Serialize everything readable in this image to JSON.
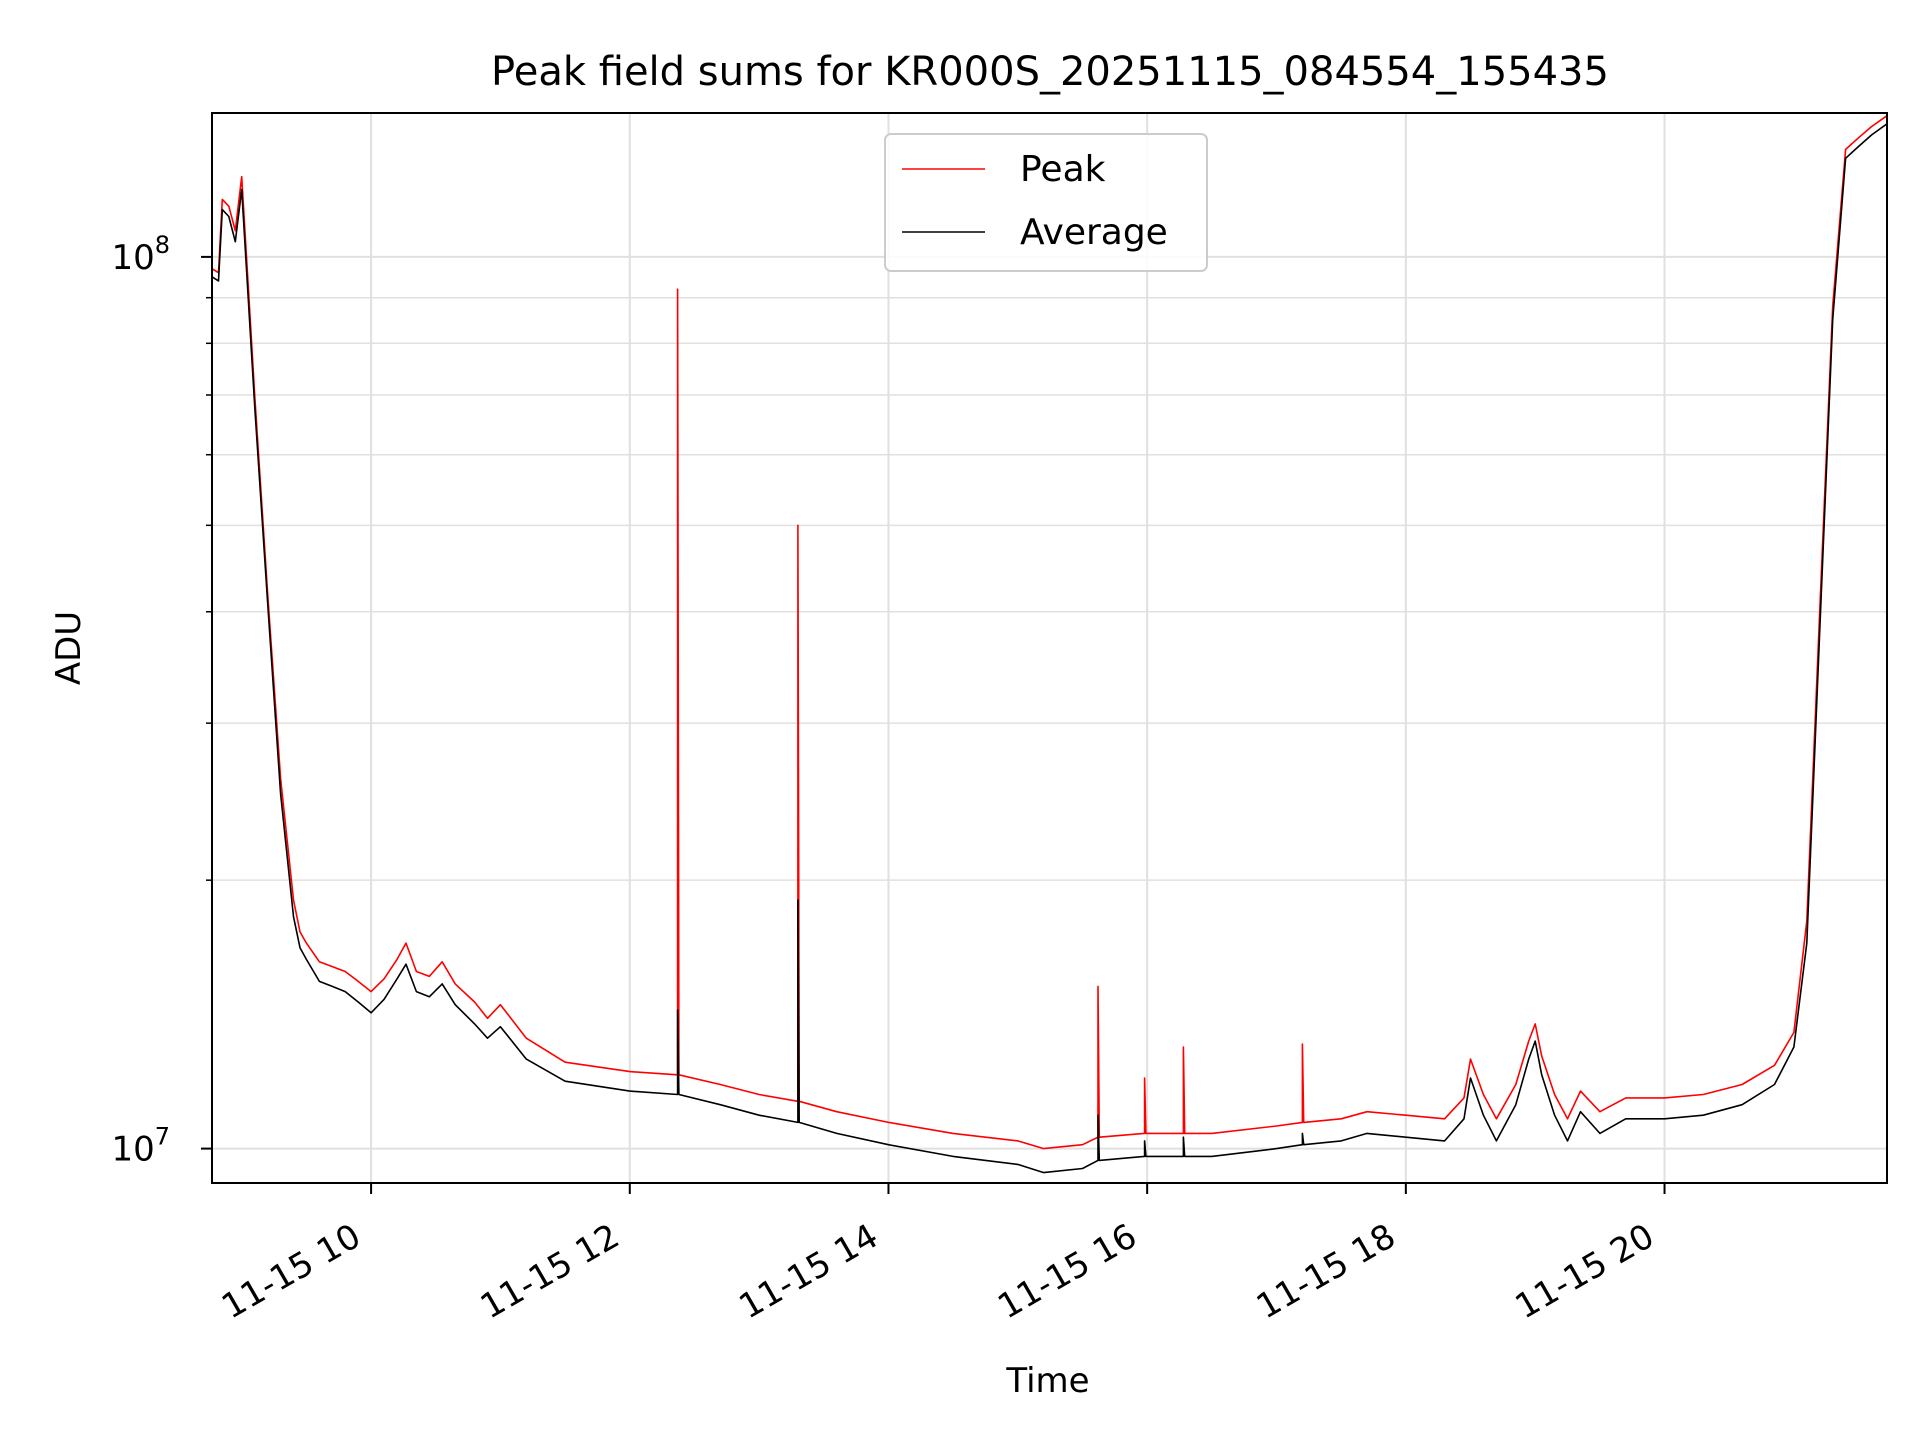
{
  "chart_data": {
    "type": "line",
    "title": "Peak field sums for KR000S_20251115_084554_155435",
    "xlabel": "Time",
    "ylabel": "ADU",
    "x_unit": "hours since 2025-11-15 00:00",
    "xlim": [
      8.77,
      21.72
    ],
    "ylim": [
      9150000.0,
      145000000.0
    ],
    "y_scale": "log",
    "grid": true,
    "legend_position": "upper center",
    "x_ticks": [
      {
        "value": 10,
        "label": "11-15 10"
      },
      {
        "value": 12,
        "label": "11-15 12"
      },
      {
        "value": 14,
        "label": "11-15 14"
      },
      {
        "value": 16,
        "label": "11-15 16"
      },
      {
        "value": 18,
        "label": "11-15 18"
      },
      {
        "value": 20,
        "label": "11-15 20"
      }
    ],
    "y_ticks": [
      {
        "value": 10000000,
        "base": "10",
        "exp": "7"
      },
      {
        "value": 100000000,
        "base": "10",
        "exp": "8"
      }
    ],
    "series": [
      {
        "name": "Peak",
        "color": "#ff0000",
        "x": [
          8.77,
          8.82,
          8.85,
          8.9,
          8.95,
          9.0,
          9.05,
          9.1,
          9.2,
          9.3,
          9.4,
          9.45,
          9.5,
          9.6,
          9.7,
          9.8,
          9.9,
          10.0,
          10.1,
          10.2,
          10.27,
          10.35,
          10.45,
          10.55,
          10.65,
          10.8,
          10.9,
          11.0,
          11.2,
          11.5,
          12.0,
          12.37,
          12.37,
          12.38,
          12.7,
          13.0,
          13.3,
          13.3,
          13.31,
          13.6,
          14.0,
          14.5,
          15.0,
          15.2,
          15.5,
          15.62,
          15.62,
          15.63,
          15.98,
          15.98,
          15.99,
          16.28,
          16.28,
          16.29,
          16.5,
          17.0,
          17.2,
          17.2,
          17.21,
          17.5,
          17.7,
          18.0,
          18.3,
          18.45,
          18.5,
          18.6,
          18.7,
          18.85,
          18.95,
          19.0,
          19.05,
          19.15,
          19.25,
          19.35,
          19.5,
          19.7,
          20.0,
          20.3,
          20.6,
          20.85,
          21.0,
          21.1,
          21.2,
          21.3,
          21.4,
          21.5,
          21.6,
          21.72
        ],
        "y": [
          97000000.0,
          96000000.0,
          116000000.0,
          114000000.0,
          107000000.0,
          123000000.0,
          93000000.0,
          70000000.0,
          42000000.0,
          26000000.0,
          19000000.0,
          17500000.0,
          17000000.0,
          16200000.0,
          16000000.0,
          15800000.0,
          15400000.0,
          15000000.0,
          15500000.0,
          16300000.0,
          17000000.0,
          15800000.0,
          15600000.0,
          16200000.0,
          15300000.0,
          14600000.0,
          14000000.0,
          14500000.0,
          13300000.0,
          12500000.0,
          12200000.0,
          12100000.0,
          92000000.0,
          12100000.0,
          11800000.0,
          11500000.0,
          11300000.0,
          50000000.0,
          11300000.0,
          11000000.0,
          10700000.0,
          10400000.0,
          10200000.0,
          10000000.0,
          10100000.0,
          10300000.0,
          15200000.0,
          10300000.0,
          10400000.0,
          12000000.0,
          10400000.0,
          10400000.0,
          13000000.0,
          10400000.0,
          10400000.0,
          10600000.0,
          10700000.0,
          13100000.0,
          10700000.0,
          10800000.0,
          11000000.0,
          10900000.0,
          10800000.0,
          11400000.0,
          12600000.0,
          11500000.0,
          10800000.0,
          11800000.0,
          13200000.0,
          13800000.0,
          12700000.0,
          11500000.0,
          10800000.0,
          11600000.0,
          11000000.0,
          11400000.0,
          11400000.0,
          11500000.0,
          11800000.0,
          12400000.0,
          13500000.0,
          18000000.0,
          40000000.0,
          88000000.0,
          132000000.0,
          136000000.0,
          140000000.0,
          144000000.0
        ]
      },
      {
        "name": "Average",
        "color": "#000000",
        "x": [
          8.77,
          8.82,
          8.85,
          8.9,
          8.95,
          9.0,
          9.05,
          9.1,
          9.2,
          9.3,
          9.4,
          9.45,
          9.5,
          9.6,
          9.7,
          9.8,
          9.9,
          10.0,
          10.1,
          10.2,
          10.27,
          10.35,
          10.45,
          10.55,
          10.65,
          10.8,
          10.9,
          11.0,
          11.2,
          11.5,
          12.0,
          12.37,
          12.37,
          12.38,
          12.7,
          13.0,
          13.3,
          13.3,
          13.31,
          13.6,
          14.0,
          14.5,
          15.0,
          15.2,
          15.5,
          15.62,
          15.62,
          15.63,
          15.98,
          15.98,
          15.99,
          16.28,
          16.28,
          16.29,
          16.5,
          17.0,
          17.2,
          17.2,
          17.21,
          17.5,
          17.7,
          18.0,
          18.3,
          18.45,
          18.5,
          18.6,
          18.7,
          18.85,
          18.95,
          19.0,
          19.05,
          19.15,
          19.25,
          19.35,
          19.5,
          19.7,
          20.0,
          20.3,
          20.6,
          20.85,
          21.0,
          21.1,
          21.2,
          21.3,
          21.4,
          21.5,
          21.6,
          21.72
        ],
        "y": [
          95000000.0,
          94000000.0,
          113000000.0,
          111000000.0,
          104000000.0,
          119000000.0,
          90000000.0,
          68000000.0,
          41000000.0,
          25000000.0,
          18200000.0,
          16800000.0,
          16300000.0,
          15400000.0,
          15200000.0,
          15000000.0,
          14600000.0,
          14200000.0,
          14700000.0,
          15500000.0,
          16100000.0,
          15000000.0,
          14800000.0,
          15300000.0,
          14500000.0,
          13800000.0,
          13300000.0,
          13700000.0,
          12600000.0,
          11900000.0,
          11600000.0,
          11500000.0,
          14300000.0,
          11500000.0,
          11200000.0,
          10900000.0,
          10700000.0,
          19000000.0,
          10700000.0,
          10400000.0,
          10100000.0,
          9800000.0,
          9600000.0,
          9400000.0,
          9500000.0,
          9700000.0,
          10900000.0,
          9700000.0,
          9800000.0,
          10200000.0,
          9800000.0,
          9800000.0,
          10300000.0,
          9800000.0,
          9800000.0,
          10000000.0,
          10100000.0,
          10400000.0,
          10100000.0,
          10200000.0,
          10400000.0,
          10300000.0,
          10200000.0,
          10800000.0,
          12000000.0,
          10900000.0,
          10200000.0,
          11200000.0,
          12600000.0,
          13200000.0,
          12100000.0,
          10900000.0,
          10200000.0,
          11000000.0,
          10400000.0,
          10800000.0,
          10800000.0,
          10900000.0,
          11200000.0,
          11800000.0,
          13000000.0,
          17000000.0,
          38000000.0,
          85000000.0,
          129000000.0,
          133000000.0,
          137000000.0,
          141000000.0
        ]
      }
    ]
  }
}
